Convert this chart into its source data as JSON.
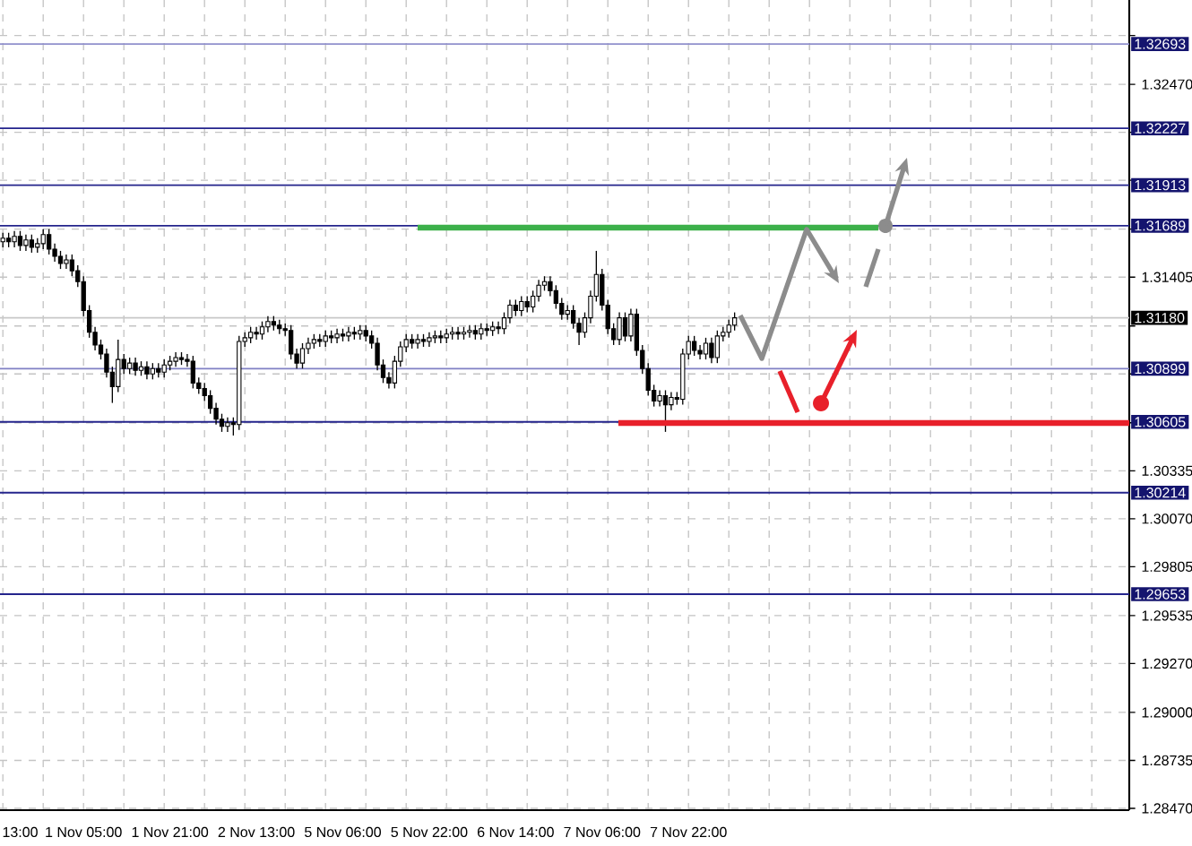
{
  "chart_data": {
    "type": "candlestick",
    "categories": [
      null,
      null,
      null,
      "13:00",
      null,
      null,
      null,
      null,
      null,
      null,
      null,
      null,
      null,
      null,
      "1 Nov 05:00",
      null,
      null,
      null,
      null,
      null,
      null,
      null,
      null,
      null,
      null,
      null,
      null,
      null,
      null,
      "1 Nov 21:00",
      null,
      null,
      null,
      null,
      null,
      null,
      null,
      null,
      null,
      null,
      null,
      null,
      null,
      null,
      "2 Nov 13:00",
      null,
      null,
      null,
      null,
      null,
      null,
      null,
      null,
      null,
      null,
      null,
      null,
      null,
      null,
      "5 Nov 06:00",
      null,
      null,
      null,
      null,
      null,
      null,
      null,
      null,
      null,
      null,
      null,
      null,
      null,
      null,
      "5 Nov 22:00",
      null,
      null,
      null,
      null,
      null,
      null,
      null,
      null,
      null,
      null,
      null,
      null,
      null,
      null,
      "6 Nov 14:00",
      null,
      null,
      null,
      null,
      null,
      null,
      null,
      null,
      null,
      null,
      null,
      null,
      null,
      null,
      "7 Nov 06:00",
      null,
      null,
      null,
      null,
      null,
      null,
      null,
      null,
      null,
      null,
      null,
      null,
      null,
      null,
      "7 Nov 22:00",
      null,
      null,
      null,
      null,
      null,
      null,
      null,
      null,
      null,
      null,
      null,
      null,
      null,
      null,
      null,
      null,
      null,
      null,
      null,
      null,
      null,
      null,
      null,
      null,
      null,
      null,
      null,
      null,
      null,
      null,
      null,
      null,
      null,
      null,
      null,
      null,
      null,
      null,
      null,
      null,
      null,
      null,
      null,
      null,
      null,
      null,
      null,
      null,
      null,
      null,
      null,
      null,
      null,
      null,
      null,
      null,
      null,
      null,
      null,
      null,
      null,
      null,
      null,
      null,
      null,
      null,
      null,
      null,
      null,
      null,
      null,
      null,
      null,
      null,
      null,
      null
    ],
    "ohlc": [
      [
        1.316,
        1.3165,
        1.3157,
        1.3162
      ],
      [
        1.3162,
        1.3165,
        1.3157,
        1.316
      ],
      [
        1.316,
        1.3166,
        1.3157,
        1.3163
      ],
      [
        1.3163,
        1.3166,
        1.3155,
        1.3158
      ],
      [
        1.3158,
        1.3164,
        1.3155,
        1.3161
      ],
      [
        1.3161,
        1.3164,
        1.3154,
        1.3157
      ],
      [
        1.3157,
        1.3162,
        1.3154,
        1.3159
      ],
      [
        1.3159,
        1.3167,
        1.3156,
        1.3164
      ],
      [
        1.3164,
        1.3167,
        1.3153,
        1.3156
      ],
      [
        1.3156,
        1.3159,
        1.3149,
        1.3152
      ],
      [
        1.3152,
        1.3155,
        1.3145,
        1.3148
      ],
      [
        1.3148,
        1.3153,
        1.3145,
        1.315
      ],
      [
        1.315,
        1.3153,
        1.3141,
        1.3144
      ],
      [
        1.3144,
        1.3147,
        1.3135,
        1.3138
      ],
      [
        1.3138,
        1.3141,
        1.3119,
        1.3122
      ],
      [
        1.3122,
        1.3125,
        1.3107,
        1.311
      ],
      [
        1.311,
        1.3113,
        1.31,
        1.3103
      ],
      [
        1.3103,
        1.3106,
        1.3095,
        1.3098
      ],
      [
        1.3098,
        1.3101,
        1.3085,
        1.3088
      ],
      [
        1.3088,
        1.3091,
        1.3071,
        1.308
      ],
      [
        1.308,
        1.3106,
        1.3077,
        1.3095
      ],
      [
        1.3095,
        1.3098,
        1.3087,
        1.309
      ],
      [
        1.309,
        1.3096,
        1.3087,
        1.3093
      ],
      [
        1.3093,
        1.3096,
        1.3086,
        1.3089
      ],
      [
        1.3089,
        1.3094,
        1.3086,
        1.3091
      ],
      [
        1.3091,
        1.3094,
        1.3084,
        1.3087
      ],
      [
        1.3087,
        1.3093,
        1.3084,
        1.309
      ],
      [
        1.309,
        1.3093,
        1.3085,
        1.3088
      ],
      [
        1.3088,
        1.3095,
        1.3085,
        1.3092
      ],
      [
        1.3092,
        1.3097,
        1.3089,
        1.3094
      ],
      [
        1.3094,
        1.3099,
        1.3091,
        1.3096
      ],
      [
        1.3096,
        1.3099,
        1.3092,
        1.3095
      ],
      [
        1.3095,
        1.3098,
        1.3091,
        1.3094
      ],
      [
        1.3094,
        1.3097,
        1.3079,
        1.3082
      ],
      [
        1.3082,
        1.3085,
        1.3076,
        1.3079
      ],
      [
        1.3079,
        1.3082,
        1.3072,
        1.3075
      ],
      [
        1.3075,
        1.3078,
        1.3065,
        1.3068
      ],
      [
        1.3068,
        1.3071,
        1.3059,
        1.3062
      ],
      [
        1.3062,
        1.3065,
        1.3055,
        1.3058
      ],
      [
        1.3058,
        1.3063,
        1.3055,
        1.306
      ],
      [
        1.306,
        1.3063,
        1.3053,
        1.3059
      ],
      [
        1.3059,
        1.3108,
        1.3056,
        1.3105
      ],
      [
        1.3105,
        1.311,
        1.3102,
        1.3107
      ],
      [
        1.3107,
        1.3113,
        1.3104,
        1.311
      ],
      [
        1.311,
        1.3113,
        1.3106,
        1.3109
      ],
      [
        1.3109,
        1.3116,
        1.3106,
        1.3113
      ],
      [
        1.3113,
        1.3119,
        1.311,
        1.3116
      ],
      [
        1.3116,
        1.3119,
        1.3111,
        1.3114
      ],
      [
        1.3114,
        1.3117,
        1.3109,
        1.3112
      ],
      [
        1.3112,
        1.3115,
        1.3108,
        1.3111
      ],
      [
        1.3111,
        1.3114,
        1.3095,
        1.3098
      ],
      [
        1.3098,
        1.3101,
        1.309,
        1.3093
      ],
      [
        1.3093,
        1.3104,
        1.309,
        1.3101
      ],
      [
        1.3101,
        1.3107,
        1.3098,
        1.3104
      ],
      [
        1.3104,
        1.3109,
        1.3101,
        1.3106
      ],
      [
        1.3106,
        1.3109,
        1.3102,
        1.3105
      ],
      [
        1.3105,
        1.3111,
        1.3102,
        1.3108
      ],
      [
        1.3108,
        1.3111,
        1.3104,
        1.3107
      ],
      [
        1.3107,
        1.3112,
        1.3104,
        1.3109
      ],
      [
        1.3109,
        1.3112,
        1.3105,
        1.3108
      ],
      [
        1.3108,
        1.3113,
        1.3105,
        1.311
      ],
      [
        1.311,
        1.3113,
        1.3106,
        1.3109
      ],
      [
        1.3109,
        1.3114,
        1.3106,
        1.3111
      ],
      [
        1.3111,
        1.3114,
        1.3105,
        1.3108
      ],
      [
        1.3108,
        1.3111,
        1.3101,
        1.3104
      ],
      [
        1.3104,
        1.3107,
        1.3089,
        1.3092
      ],
      [
        1.3092,
        1.3095,
        1.3082,
        1.3085
      ],
      [
        1.3085,
        1.3088,
        1.3079,
        1.3082
      ],
      [
        1.3082,
        1.3097,
        1.3079,
        1.3094
      ],
      [
        1.3094,
        1.3105,
        1.3091,
        1.3102
      ],
      [
        1.3102,
        1.3109,
        1.3099,
        1.3106
      ],
      [
        1.3106,
        1.3109,
        1.3101,
        1.3104
      ],
      [
        1.3104,
        1.3109,
        1.3101,
        1.3106
      ],
      [
        1.3106,
        1.3109,
        1.3102,
        1.3105
      ],
      [
        1.3105,
        1.311,
        1.3102,
        1.3107
      ],
      [
        1.3107,
        1.3111,
        1.3104,
        1.3108
      ],
      [
        1.3108,
        1.3111,
        1.3104,
        1.3107
      ],
      [
        1.3107,
        1.3112,
        1.3104,
        1.3109
      ],
      [
        1.3109,
        1.3113,
        1.3106,
        1.311
      ],
      [
        1.311,
        1.3113,
        1.3106,
        1.3109
      ],
      [
        1.3109,
        1.3113,
        1.3106,
        1.311
      ],
      [
        1.311,
        1.3114,
        1.3107,
        1.3111
      ],
      [
        1.3111,
        1.3114,
        1.3106,
        1.3109
      ],
      [
        1.3109,
        1.3115,
        1.3106,
        1.3112
      ],
      [
        1.3112,
        1.3115,
        1.3108,
        1.3111
      ],
      [
        1.3111,
        1.3116,
        1.3108,
        1.3113
      ],
      [
        1.3113,
        1.3116,
        1.3109,
        1.3112
      ],
      [
        1.3112,
        1.3121,
        1.3109,
        1.3118
      ],
      [
        1.3118,
        1.3128,
        1.3115,
        1.3125
      ],
      [
        1.3125,
        1.3128,
        1.3119,
        1.3122
      ],
      [
        1.3122,
        1.313,
        1.3119,
        1.3127
      ],
      [
        1.3127,
        1.313,
        1.3121,
        1.3124
      ],
      [
        1.3124,
        1.3133,
        1.3121,
        1.313
      ],
      [
        1.313,
        1.3139,
        1.3127,
        1.3136
      ],
      [
        1.3136,
        1.3141,
        1.3133,
        1.3138
      ],
      [
        1.3138,
        1.3141,
        1.313,
        1.3133
      ],
      [
        1.3133,
        1.3136,
        1.3123,
        1.3126
      ],
      [
        1.3126,
        1.3129,
        1.3117,
        1.312
      ],
      [
        1.312,
        1.3125,
        1.3117,
        1.3122
      ],
      [
        1.3122,
        1.3125,
        1.3112,
        1.3115
      ],
      [
        1.3115,
        1.3118,
        1.3103,
        1.311
      ],
      [
        1.311,
        1.3121,
        1.3107,
        1.3118
      ],
      [
        1.3118,
        1.3133,
        1.3115,
        1.313
      ],
      [
        1.313,
        1.3155,
        1.3127,
        1.3142
      ],
      [
        1.3142,
        1.3145,
        1.3122,
        1.3125
      ],
      [
        1.3125,
        1.3128,
        1.3109,
        1.3112
      ],
      [
        1.3112,
        1.3115,
        1.3103,
        1.3106
      ],
      [
        1.3106,
        1.3121,
        1.3103,
        1.3118
      ],
      [
        1.3118,
        1.3121,
        1.3105,
        1.3108
      ],
      [
        1.3108,
        1.3123,
        1.3105,
        1.312
      ],
      [
        1.312,
        1.3123,
        1.3097,
        1.31
      ],
      [
        1.31,
        1.3103,
        1.3087,
        1.309
      ],
      [
        1.309,
        1.3093,
        1.3075,
        1.3078
      ],
      [
        1.3078,
        1.3081,
        1.3069,
        1.3072
      ],
      [
        1.3072,
        1.3078,
        1.3069,
        1.3075
      ],
      [
        1.3075,
        1.3078,
        1.3055,
        1.307
      ],
      [
        1.307,
        1.3077,
        1.3067,
        1.3074
      ],
      [
        1.3074,
        1.3077,
        1.307,
        1.3073
      ],
      [
        1.3073,
        1.3101,
        1.307,
        1.3098
      ],
      [
        1.3098,
        1.3108,
        1.3095,
        1.3105
      ],
      [
        1.3105,
        1.3108,
        1.3097,
        1.31
      ],
      [
        1.31,
        1.3103,
        1.3095,
        1.3098
      ],
      [
        1.3098,
        1.3107,
        1.3095,
        1.3104
      ],
      [
        1.3104,
        1.3107,
        1.3093,
        1.3096
      ],
      [
        1.3096,
        1.3111,
        1.3093,
        1.3108
      ],
      [
        1.3108,
        1.3113,
        1.3105,
        1.311
      ],
      [
        1.311,
        1.3117,
        1.3107,
        1.3114
      ],
      [
        1.3114,
        1.3121,
        1.3111,
        1.3118
      ],
      null,
      null,
      null,
      null,
      null,
      null,
      null,
      null,
      null,
      null,
      null,
      null,
      null,
      null,
      null,
      null,
      null,
      null,
      null,
      null,
      null,
      null,
      null,
      null,
      null,
      null,
      null,
      null,
      null,
      null,
      null,
      null,
      null,
      null,
      null,
      null,
      null,
      null,
      null,
      null,
      null,
      null,
      null,
      null,
      null,
      null,
      null,
      null,
      null,
      null,
      null,
      null,
      null,
      null,
      null,
      null,
      null,
      null,
      null,
      null,
      null,
      null,
      null,
      null,
      null,
      null,
      null,
      null
    ],
    "ylim": [
      1.2846,
      1.32936
    ],
    "yticks": [
      {
        "value": 1.2847,
        "label": "1.28470"
      },
      {
        "value": 1.28735,
        "label": "1.28735"
      },
      {
        "value": 1.29,
        "label": "1.29000"
      },
      {
        "value": 1.2927,
        "label": "1.29270"
      },
      {
        "value": 1.29535,
        "label": "1.29535"
      },
      {
        "value": 1.29805,
        "label": "1.29805"
      },
      {
        "value": 1.3007,
        "label": "1.30070"
      },
      {
        "value": 1.30335,
        "label": "1.30335"
      },
      {
        "value": 1.306,
        "label": null
      },
      {
        "value": 1.3087,
        "label": null
      },
      {
        "value": 1.31135,
        "label": null
      },
      {
        "value": 1.31405,
        "label": "1.31405"
      },
      {
        "value": 1.3167,
        "label": null
      },
      {
        "value": 1.3194,
        "label": null
      },
      {
        "value": 1.32205,
        "label": null
      },
      {
        "value": 1.3247,
        "label": "1.32470"
      },
      {
        "value": 1.3274,
        "label": null
      }
    ],
    "ref_lines": [
      {
        "axis": "y",
        "value": 1.32693,
        "label": "1.32693",
        "color": "#9090cc"
      },
      {
        "axis": "y",
        "value": 1.32227,
        "label": "1.32227",
        "color": "#24248c"
      },
      {
        "axis": "y",
        "value": 1.31913,
        "label": "1.31913",
        "color": "#24248c"
      },
      {
        "axis": "y",
        "value": 1.31689,
        "label": "1.31689",
        "color": "#24248c"
      },
      {
        "axis": "y",
        "value": 1.3118,
        "label": "1.31180",
        "color": "#c8c8c8"
      },
      {
        "axis": "y",
        "value": 1.30899,
        "label": "1.30899",
        "color": "#8080c4"
      },
      {
        "axis": "y",
        "value": 1.30605,
        "label": "1.30605",
        "color": "#24248c"
      },
      {
        "axis": "y",
        "value": 1.30214,
        "label": "1.30214",
        "color": "#24248c"
      },
      {
        "axis": "y",
        "value": 1.29653,
        "label": "1.29653",
        "color": "#24248c"
      }
    ],
    "grid": true
  }
}
